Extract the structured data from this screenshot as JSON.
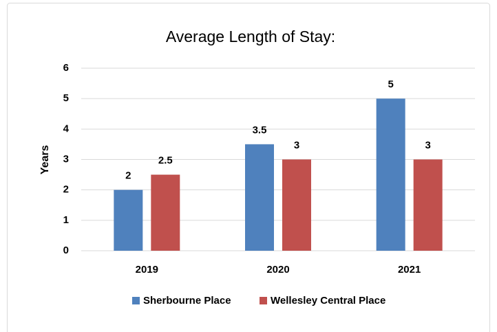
{
  "chart_data": {
    "type": "bar",
    "title": "Average Length of Stay:",
    "y_label": "Years",
    "categories": [
      "2019",
      "2020",
      "2021"
    ],
    "series": [
      {
        "name": "Sherbourne Place",
        "color": "#4f81bd",
        "values": [
          2,
          3.5,
          5
        ]
      },
      {
        "name": "Wellesley Central Place",
        "color": "#c0504d",
        "values": [
          2.5,
          3,
          3
        ]
      }
    ],
    "ylim": [
      0,
      6
    ],
    "yticks": [
      0,
      1,
      2,
      3,
      4,
      5,
      6
    ],
    "grid": true,
    "legend": "bottom"
  }
}
